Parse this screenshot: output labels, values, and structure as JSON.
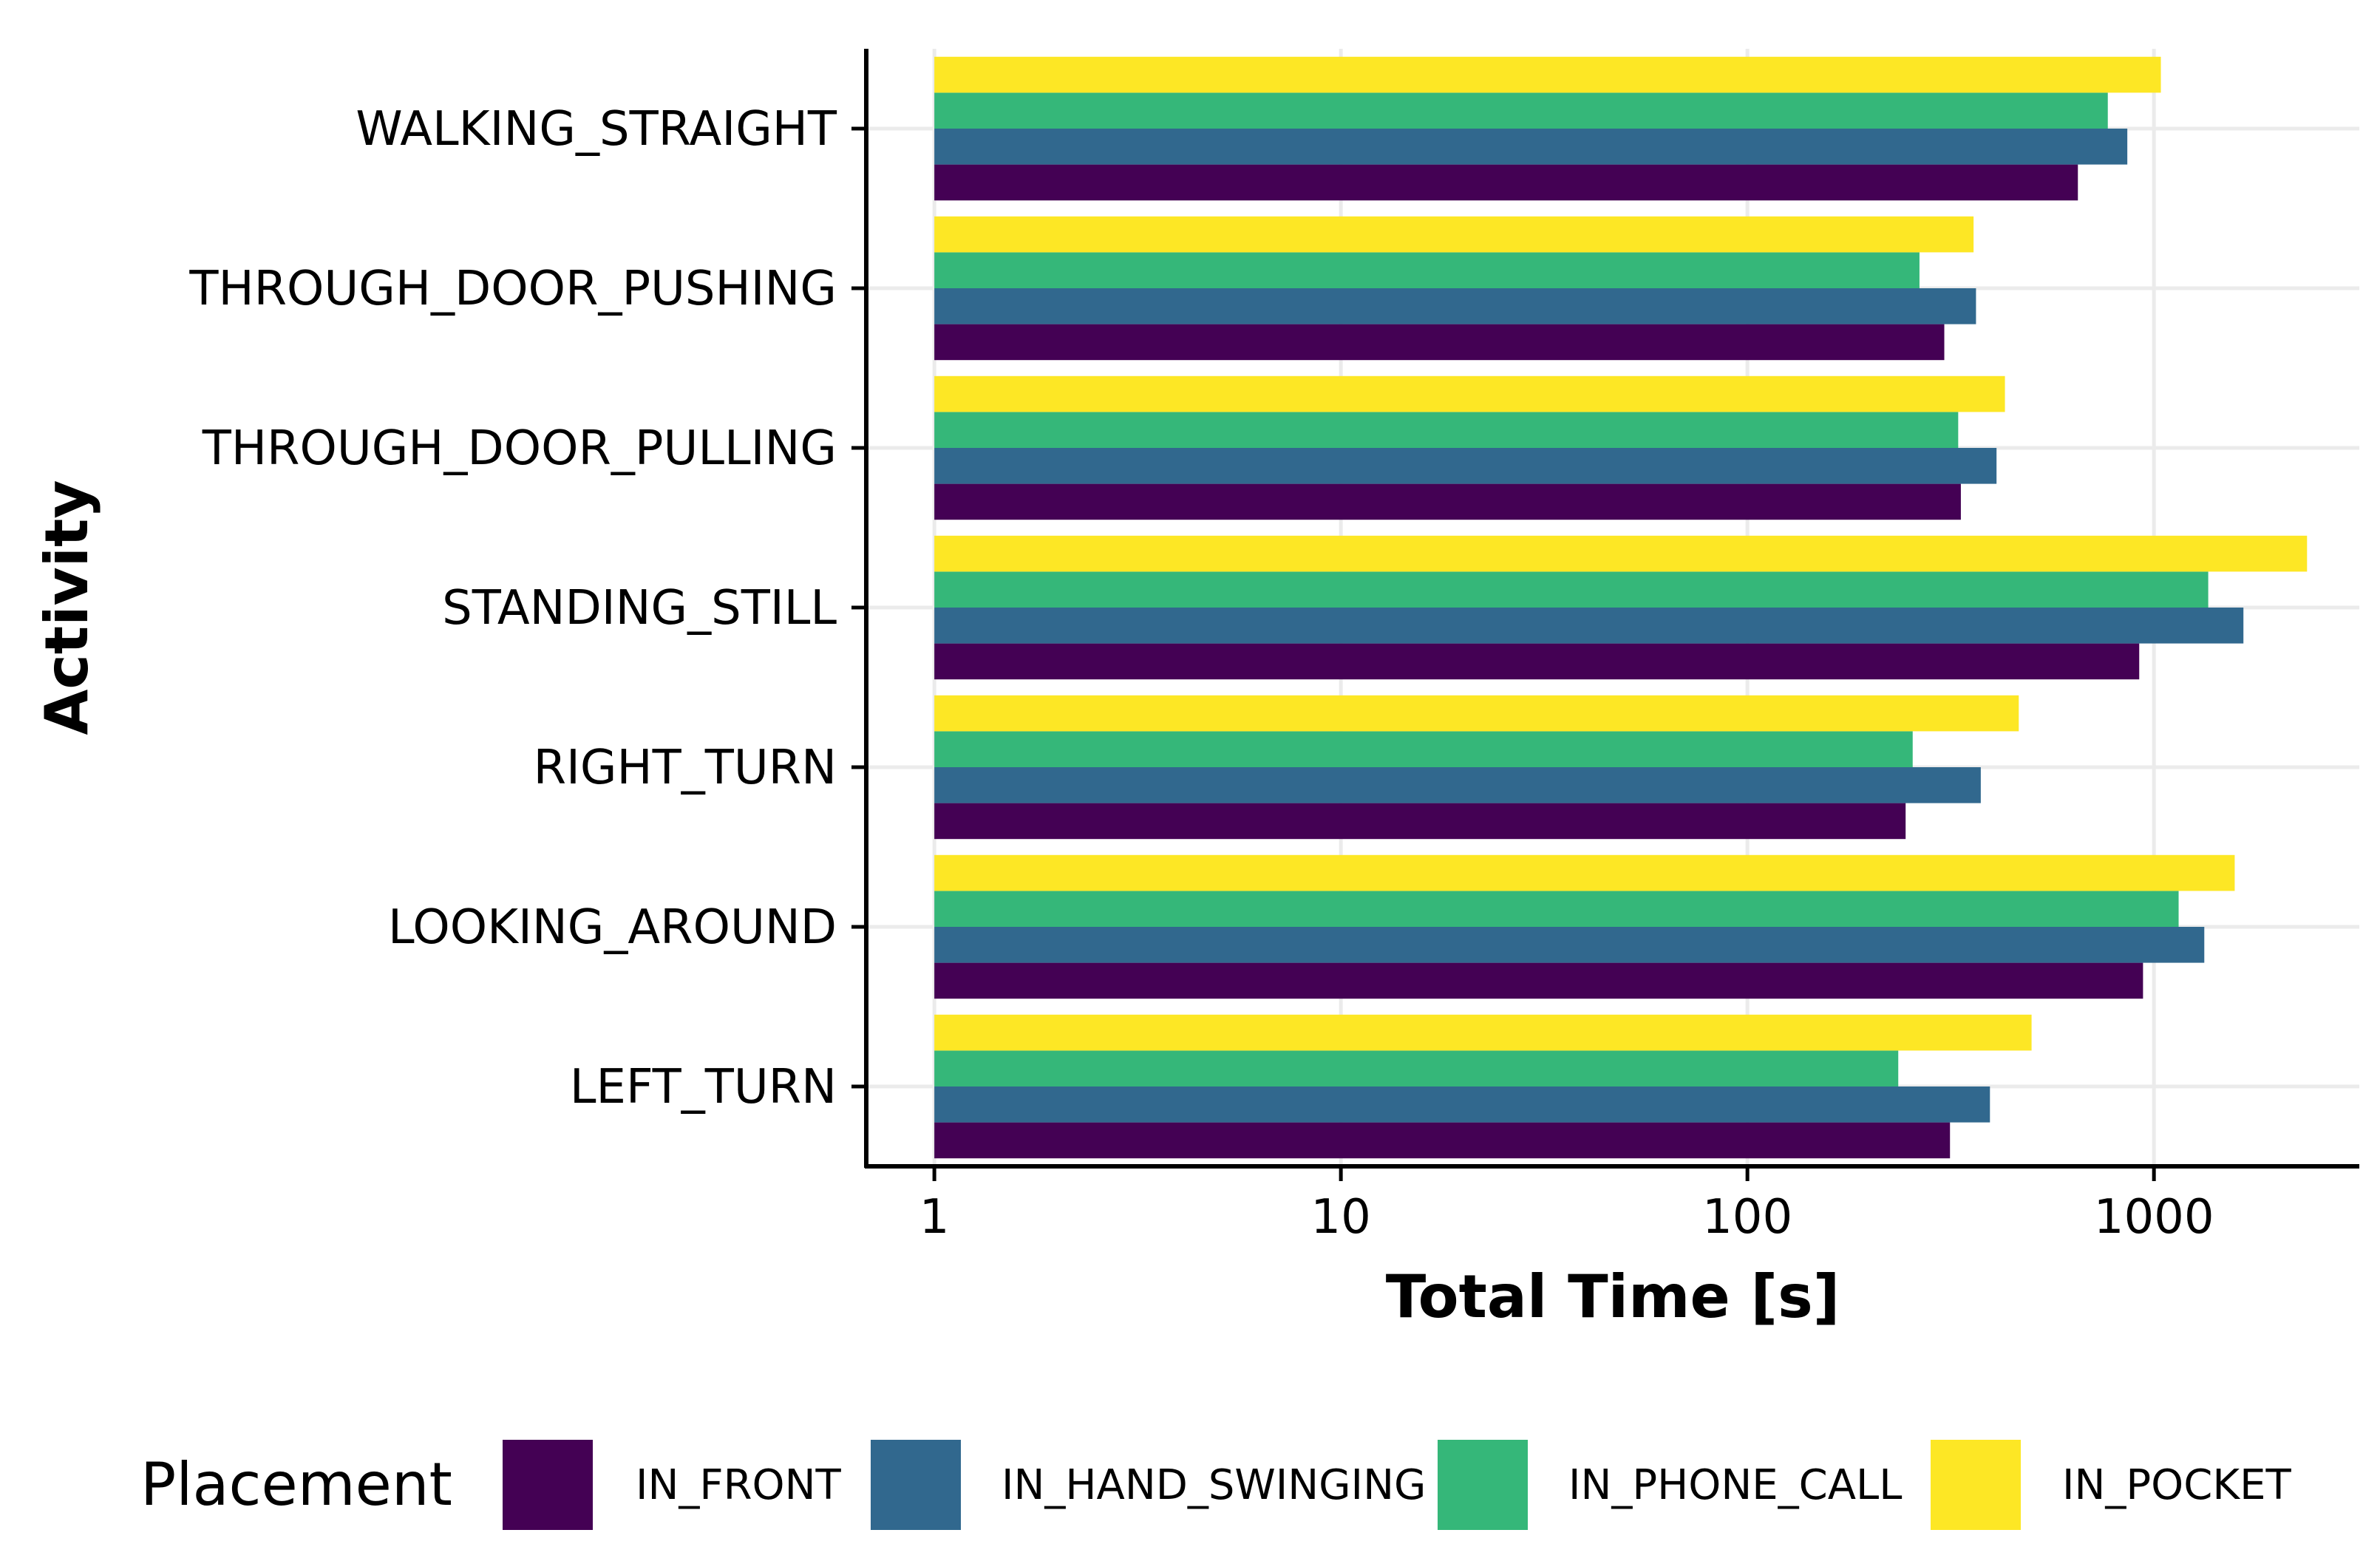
{
  "chart_data": {
    "type": "bar",
    "orientation": "horizontal",
    "xscale": "log10",
    "xlim": [
      0.68,
      3200
    ],
    "xticks": [
      1,
      10,
      100,
      1000
    ],
    "xtick_labels": [
      "1",
      "10",
      "100",
      "1000"
    ],
    "xlabel": "Total Time [s]",
    "ylabel": "Activity",
    "grid": true,
    "legend": {
      "title": "Placement",
      "position": "bottom"
    },
    "categories": [
      "WALKING_STRAIGHT",
      "THROUGH_DOOR_PUSHING",
      "THROUGH_DOOR_PULLING",
      "STANDING_STILL",
      "RIGHT_TURN",
      "LOOKING_AROUND",
      "LEFT_TURN"
    ],
    "series": [
      {
        "name": "IN_FRONT",
        "color": "#440154",
        "values": [
          650,
          305,
          335,
          920,
          245,
          940,
          315
        ]
      },
      {
        "name": "IN_HAND_SWINGING",
        "color": "#31688E",
        "values": [
          860,
          365,
          410,
          1660,
          375,
          1330,
          395
        ]
      },
      {
        "name": "IN_PHONE_CALL",
        "color": "#35B779",
        "values": [
          770,
          265,
          330,
          1360,
          255,
          1150,
          235
        ]
      },
      {
        "name": "IN_POCKET",
        "color": "#FDE725",
        "values": [
          1040,
          360,
          430,
          2380,
          465,
          1580,
          500
        ]
      }
    ]
  }
}
